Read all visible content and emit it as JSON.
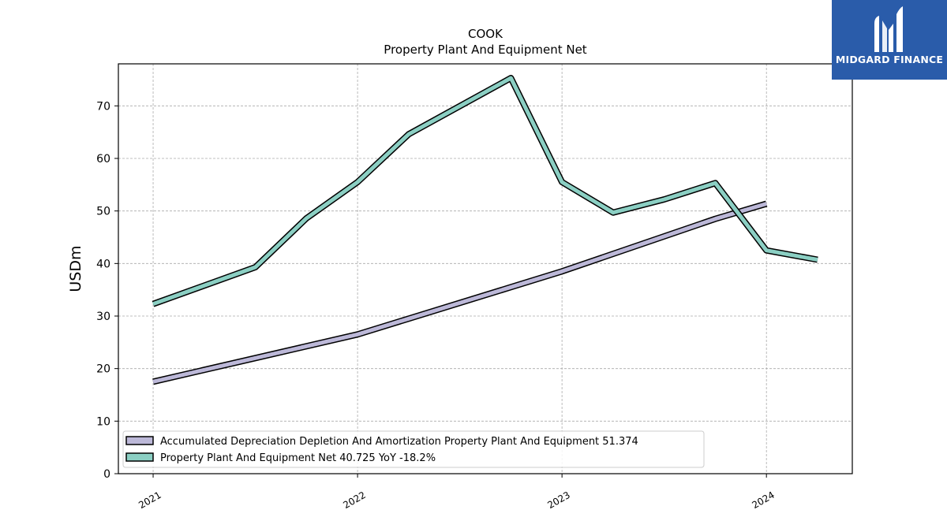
{
  "chart_data": {
    "type": "line",
    "title": "COOK",
    "subtitle": "Property Plant And Equipment Net",
    "ylabel": "USDm",
    "xlabel": "",
    "ylim": [
      0,
      78
    ],
    "xlim": [
      2020.83,
      2024.42
    ],
    "yticks": [
      0,
      10,
      20,
      30,
      40,
      50,
      60,
      70
    ],
    "xticks": [
      {
        "value": 2021.0,
        "label": "2021"
      },
      {
        "value": 2022.0,
        "label": "2022"
      },
      {
        "value": 2023.0,
        "label": "2023"
      },
      {
        "value": 2024.0,
        "label": "2024"
      }
    ],
    "grid": true,
    "legend_position": "lower-left",
    "series": [
      {
        "name": "Accumulated Depreciation Depletion And Amortization Property Plant And Equipment",
        "legend_label": "Accumulated Depreciation Depletion And Amortization Property Plant And Equipment  51.374",
        "color": "#bcb8d8",
        "x": [
          2021.0,
          2021.5,
          2022.0,
          2022.25,
          2022.75,
          2023.0,
          2023.75,
          2024.0
        ],
        "y": [
          17.5,
          22.0,
          26.5,
          29.5,
          35.5,
          38.5,
          48.5,
          51.374
        ]
      },
      {
        "name": "Property Plant And Equipment Net",
        "legend_label": "Property Plant And Equipment Net  40.725 YoY -18.2%",
        "color": "#8bcfc3",
        "x": [
          2021.0,
          2021.5,
          2021.75,
          2022.0,
          2022.25,
          2022.75,
          2023.0,
          2023.25,
          2023.5,
          2023.75,
          2024.0,
          2024.25
        ],
        "y": [
          32.3,
          39.3,
          48.6,
          55.5,
          64.6,
          75.3,
          55.5,
          49.7,
          52.2,
          55.3,
          42.5,
          40.725
        ]
      }
    ]
  },
  "logo": {
    "text": "MIDGARD FINANCE",
    "color": "#2a5caa"
  }
}
